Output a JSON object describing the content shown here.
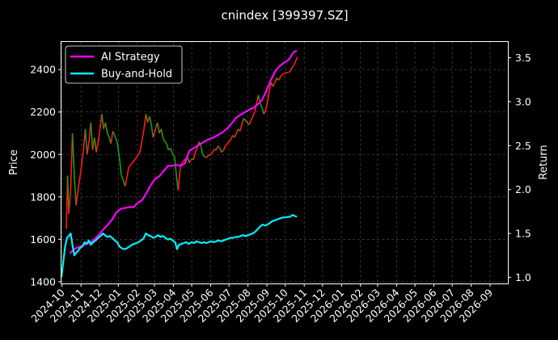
{
  "chart_data": {
    "type": "line",
    "title": "cnindex [399397.SZ]",
    "y_left": {
      "label": "Price",
      "range": [
        1392,
        2530
      ],
      "ticks": [
        1400,
        1600,
        1800,
        2000,
        2200,
        2400
      ]
    },
    "y_right": {
      "label": "Return",
      "range": [
        0.93,
        3.68
      ],
      "ticks": [
        1.0,
        1.5,
        2.0,
        2.5,
        3.0,
        3.5
      ]
    },
    "x": {
      "type": "date",
      "range": [
        "2024-09-30",
        "2026-09-30"
      ],
      "ticks": [
        "2024-10",
        "2024-11",
        "2024-12",
        "2025-01",
        "2025-02",
        "2025-03",
        "2025-04",
        "2025-05",
        "2025-06",
        "2025-07",
        "2025-08",
        "2025-09",
        "2025-10",
        "2025-11",
        "2025-12",
        "2026-01",
        "2026-02",
        "2026-03",
        "2026-04",
        "2026-05",
        "2026-06",
        "2026-07",
        "2026-08",
        "2026-09"
      ]
    },
    "grid": true,
    "legend": {
      "position": "top-left",
      "entries": [
        "AI Strategy",
        "Buy-and-Hold"
      ]
    },
    "colors": {
      "ai": "#ff00ff",
      "bh": "#00eeff",
      "up": "#ff1a1a",
      "down": "#16a016",
      "grid": "#555555",
      "axis": "#ffffff",
      "background": "#000000"
    },
    "price_series": {
      "name": "Price",
      "points": [
        [
          "2024-10-08",
          1650
        ],
        [
          "2024-10-10",
          1900
        ],
        [
          "2024-10-12",
          1720
        ],
        [
          "2024-10-15",
          1830
        ],
        [
          "2024-10-18",
          2100
        ],
        [
          "2024-10-21",
          1900
        ],
        [
          "2024-10-24",
          1760
        ],
        [
          "2024-10-27",
          1830
        ],
        [
          "2024-10-30",
          1890
        ],
        [
          "2024-11-02",
          1950
        ],
        [
          "2024-11-05",
          2020
        ],
        [
          "2024-11-08",
          2120
        ],
        [
          "2024-11-11",
          2000
        ],
        [
          "2024-11-14",
          2060
        ],
        [
          "2024-11-17",
          2150
        ],
        [
          "2024-11-20",
          2020
        ],
        [
          "2024-11-23",
          2080
        ],
        [
          "2024-11-26",
          2010
        ],
        [
          "2024-11-29",
          2060
        ],
        [
          "2024-12-02",
          2120
        ],
        [
          "2024-12-05",
          2190
        ],
        [
          "2024-12-08",
          2120
        ],
        [
          "2024-12-11",
          2150
        ],
        [
          "2024-12-14",
          2100
        ],
        [
          "2024-12-17",
          2080
        ],
        [
          "2024-12-20",
          2050
        ],
        [
          "2024-12-23",
          2110
        ],
        [
          "2024-12-26",
          2090
        ],
        [
          "2024-12-30",
          2060
        ],
        [
          "2025-01-03",
          1980
        ],
        [
          "2025-01-06",
          1900
        ],
        [
          "2025-01-09",
          1880
        ],
        [
          "2025-01-12",
          1850
        ],
        [
          "2025-01-15",
          1890
        ],
        [
          "2025-01-18",
          1940
        ],
        [
          "2025-01-21",
          1950
        ],
        [
          "2025-01-24",
          1960
        ],
        [
          "2025-02-03",
          2000
        ],
        [
          "2025-02-06",
          2020
        ],
        [
          "2025-02-09",
          2070
        ],
        [
          "2025-02-12",
          2120
        ],
        [
          "2025-02-15",
          2190
        ],
        [
          "2025-02-18",
          2150
        ],
        [
          "2025-02-21",
          2180
        ],
        [
          "2025-02-24",
          2140
        ],
        [
          "2025-02-27",
          2080
        ],
        [
          "2025-03-03",
          2120
        ],
        [
          "2025-03-06",
          2150
        ],
        [
          "2025-03-09",
          2100
        ],
        [
          "2025-03-12",
          2120
        ],
        [
          "2025-03-15",
          2080
        ],
        [
          "2025-03-18",
          2060
        ],
        [
          "2025-03-21",
          2050
        ],
        [
          "2025-03-24",
          2020
        ],
        [
          "2025-03-27",
          2030
        ],
        [
          "2025-03-31",
          2000
        ],
        [
          "2025-04-03",
          1990
        ],
        [
          "2025-04-06",
          1900
        ],
        [
          "2025-04-09",
          1830
        ],
        [
          "2025-04-12",
          1930
        ],
        [
          "2025-04-15",
          1960
        ],
        [
          "2025-04-18",
          1970
        ],
        [
          "2025-04-21",
          1980
        ],
        [
          "2025-04-24",
          1990
        ],
        [
          "2025-04-27",
          1960
        ],
        [
          "2025-05-01",
          1980
        ],
        [
          "2025-05-04",
          1975
        ],
        [
          "2025-05-07",
          2010
        ],
        [
          "2025-05-10",
          2030
        ],
        [
          "2025-05-13",
          2060
        ],
        [
          "2025-05-16",
          2040
        ],
        [
          "2025-05-19",
          2000
        ],
        [
          "2025-05-22",
          1990
        ],
        [
          "2025-05-25",
          1985
        ],
        [
          "2025-05-28",
          1995
        ],
        [
          "2025-06-01",
          2000
        ],
        [
          "2025-06-04",
          2010
        ],
        [
          "2025-06-07",
          2025
        ],
        [
          "2025-06-10",
          2020
        ],
        [
          "2025-06-13",
          2040
        ],
        [
          "2025-06-16",
          2030
        ],
        [
          "2025-06-19",
          2010
        ],
        [
          "2025-06-22",
          2020
        ],
        [
          "2025-06-25",
          2040
        ],
        [
          "2025-06-28",
          2050
        ],
        [
          "2025-07-01",
          2060
        ],
        [
          "2025-07-04",
          2070
        ],
        [
          "2025-07-07",
          2090
        ],
        [
          "2025-07-10",
          2080
        ],
        [
          "2025-07-13",
          2100
        ],
        [
          "2025-07-16",
          2120
        ],
        [
          "2025-07-19",
          2110
        ],
        [
          "2025-07-22",
          2140
        ],
        [
          "2025-07-25",
          2170
        ],
        [
          "2025-07-28",
          2160
        ],
        [
          "2025-07-31",
          2150
        ],
        [
          "2025-08-03",
          2140
        ],
        [
          "2025-08-06",
          2160
        ],
        [
          "2025-08-09",
          2180
        ],
        [
          "2025-08-12",
          2200
        ],
        [
          "2025-08-15",
          2240
        ],
        [
          "2025-08-18",
          2280
        ],
        [
          "2025-08-21",
          2240
        ],
        [
          "2025-08-24",
          2220
        ],
        [
          "2025-08-27",
          2190
        ],
        [
          "2025-08-30",
          2210
        ],
        [
          "2025-09-02",
          2250
        ],
        [
          "2025-09-05",
          2300
        ],
        [
          "2025-09-08",
          2340
        ],
        [
          "2025-09-11",
          2320
        ],
        [
          "2025-09-14",
          2340
        ],
        [
          "2025-09-17",
          2360
        ],
        [
          "2025-09-20",
          2350
        ],
        [
          "2025-09-24",
          2370
        ],
        [
          "2025-09-28",
          2380
        ],
        [
          "2025-10-09",
          2390
        ],
        [
          "2025-10-12",
          2410
        ],
        [
          "2025-10-15",
          2420
        ],
        [
          "2025-10-18",
          2440
        ],
        [
          "2025-10-21",
          2460
        ]
      ]
    },
    "series": [
      {
        "name": "AI Strategy",
        "axis": "right",
        "points": [
          [
            "2024-10-14",
            1.27
          ],
          [
            "2024-10-20",
            1.32
          ],
          [
            "2024-10-27",
            1.34
          ],
          [
            "2024-11-03",
            1.36
          ],
          [
            "2024-11-10",
            1.38
          ],
          [
            "2024-11-17",
            1.4
          ],
          [
            "2024-11-24",
            1.44
          ],
          [
            "2024-12-01",
            1.49
          ],
          [
            "2024-12-08",
            1.55
          ],
          [
            "2024-12-15",
            1.6
          ],
          [
            "2024-12-22",
            1.66
          ],
          [
            "2024-12-29",
            1.74
          ],
          [
            "2025-01-05",
            1.78
          ],
          [
            "2025-01-12",
            1.79
          ],
          [
            "2025-01-19",
            1.8
          ],
          [
            "2025-01-26",
            1.8
          ],
          [
            "2025-02-02",
            1.85
          ],
          [
            "2025-02-09",
            1.88
          ],
          [
            "2025-02-16",
            1.96
          ],
          [
            "2025-02-23",
            2.05
          ],
          [
            "2025-03-02",
            2.12
          ],
          [
            "2025-03-09",
            2.15
          ],
          [
            "2025-03-16",
            2.21
          ],
          [
            "2025-03-23",
            2.27
          ],
          [
            "2025-03-30",
            2.27
          ],
          [
            "2025-04-06",
            2.28
          ],
          [
            "2025-04-13",
            2.27
          ],
          [
            "2025-04-20",
            2.3
          ],
          [
            "2025-04-27",
            2.44
          ],
          [
            "2025-05-04",
            2.47
          ],
          [
            "2025-05-11",
            2.5
          ],
          [
            "2025-05-18",
            2.53
          ],
          [
            "2025-05-25",
            2.56
          ],
          [
            "2025-06-01",
            2.58
          ],
          [
            "2025-06-08",
            2.6
          ],
          [
            "2025-06-15",
            2.63
          ],
          [
            "2025-06-22",
            2.66
          ],
          [
            "2025-06-29",
            2.7
          ],
          [
            "2025-07-06",
            2.76
          ],
          [
            "2025-07-13",
            2.82
          ],
          [
            "2025-07-20",
            2.85
          ],
          [
            "2025-07-27",
            2.88
          ],
          [
            "2025-08-03",
            2.91
          ],
          [
            "2025-08-10",
            2.93
          ],
          [
            "2025-08-17",
            2.97
          ],
          [
            "2025-08-24",
            3.02
          ],
          [
            "2025-08-31",
            3.12
          ],
          [
            "2025-09-07",
            3.24
          ],
          [
            "2025-09-14",
            3.34
          ],
          [
            "2025-09-21",
            3.4
          ],
          [
            "2025-09-28",
            3.44
          ],
          [
            "2025-10-05",
            3.47
          ],
          [
            "2025-10-09",
            3.5
          ],
          [
            "2025-10-13",
            3.55
          ],
          [
            "2025-10-16",
            3.57
          ],
          [
            "2025-10-20",
            3.58
          ]
        ]
      },
      {
        "name": "Buy-and-Hold",
        "axis": "right",
        "points": [
          [
            "2024-09-30",
            1.0
          ],
          [
            "2024-10-03",
            1.18
          ],
          [
            "2024-10-06",
            1.35
          ],
          [
            "2024-10-09",
            1.45
          ],
          [
            "2024-10-12",
            1.47
          ],
          [
            "2024-10-15",
            1.5
          ],
          [
            "2024-10-18",
            1.37
          ],
          [
            "2024-10-21",
            1.25
          ],
          [
            "2024-10-24",
            1.28
          ],
          [
            "2024-10-27",
            1.3
          ],
          [
            "2024-10-30",
            1.33
          ],
          [
            "2024-11-03",
            1.35
          ],
          [
            "2024-11-07",
            1.4
          ],
          [
            "2024-11-10",
            1.38
          ],
          [
            "2024-11-14",
            1.42
          ],
          [
            "2024-11-17",
            1.37
          ],
          [
            "2024-11-21",
            1.4
          ],
          [
            "2024-11-25",
            1.42
          ],
          [
            "2024-11-29",
            1.45
          ],
          [
            "2024-12-03",
            1.47
          ],
          [
            "2024-12-07",
            1.5
          ],
          [
            "2024-12-10",
            1.48
          ],
          [
            "2024-12-14",
            1.46
          ],
          [
            "2024-12-18",
            1.47
          ],
          [
            "2024-12-22",
            1.45
          ],
          [
            "2024-12-26",
            1.42
          ],
          [
            "2024-12-30",
            1.4
          ],
          [
            "2025-01-03",
            1.35
          ],
          [
            "2025-01-07",
            1.33
          ],
          [
            "2025-01-11",
            1.32
          ],
          [
            "2025-01-15",
            1.33
          ],
          [
            "2025-01-19",
            1.35
          ],
          [
            "2025-01-23",
            1.37
          ],
          [
            "2025-01-27",
            1.38
          ],
          [
            "2025-02-03",
            1.4
          ],
          [
            "2025-02-07",
            1.42
          ],
          [
            "2025-02-11",
            1.44
          ],
          [
            "2025-02-15",
            1.5
          ],
          [
            "2025-02-19",
            1.48
          ],
          [
            "2025-02-23",
            1.47
          ],
          [
            "2025-02-27",
            1.45
          ],
          [
            "2025-03-03",
            1.46
          ],
          [
            "2025-03-07",
            1.48
          ],
          [
            "2025-03-11",
            1.46
          ],
          [
            "2025-03-15",
            1.47
          ],
          [
            "2025-03-19",
            1.45
          ],
          [
            "2025-03-23",
            1.43
          ],
          [
            "2025-03-27",
            1.44
          ],
          [
            "2025-03-31",
            1.42
          ],
          [
            "2025-04-04",
            1.4
          ],
          [
            "2025-04-07",
            1.32
          ],
          [
            "2025-04-10",
            1.37
          ],
          [
            "2025-04-14",
            1.38
          ],
          [
            "2025-04-18",
            1.39
          ],
          [
            "2025-04-22",
            1.4
          ],
          [
            "2025-04-26",
            1.38
          ],
          [
            "2025-05-01",
            1.4
          ],
          [
            "2025-05-05",
            1.39
          ],
          [
            "2025-05-09",
            1.41
          ],
          [
            "2025-05-13",
            1.4
          ],
          [
            "2025-05-17",
            1.39
          ],
          [
            "2025-05-21",
            1.4
          ],
          [
            "2025-05-25",
            1.39
          ],
          [
            "2025-05-29",
            1.4
          ],
          [
            "2025-06-02",
            1.41
          ],
          [
            "2025-06-06",
            1.4
          ],
          [
            "2025-06-10",
            1.41
          ],
          [
            "2025-06-14",
            1.42
          ],
          [
            "2025-06-18",
            1.41
          ],
          [
            "2025-06-22",
            1.42
          ],
          [
            "2025-06-26",
            1.43
          ],
          [
            "2025-06-30",
            1.44
          ],
          [
            "2025-07-04",
            1.45
          ],
          [
            "2025-07-08",
            1.45
          ],
          [
            "2025-07-12",
            1.46
          ],
          [
            "2025-07-16",
            1.46
          ],
          [
            "2025-07-20",
            1.47
          ],
          [
            "2025-07-24",
            1.48
          ],
          [
            "2025-07-28",
            1.47
          ],
          [
            "2025-08-01",
            1.48
          ],
          [
            "2025-08-05",
            1.49
          ],
          [
            "2025-08-09",
            1.5
          ],
          [
            "2025-08-13",
            1.52
          ],
          [
            "2025-08-17",
            1.55
          ],
          [
            "2025-08-21",
            1.58
          ],
          [
            "2025-08-25",
            1.6
          ],
          [
            "2025-08-29",
            1.59
          ],
          [
            "2025-09-02",
            1.6
          ],
          [
            "2025-09-06",
            1.62
          ],
          [
            "2025-09-10",
            1.64
          ],
          [
            "2025-09-14",
            1.65
          ],
          [
            "2025-09-18",
            1.66
          ],
          [
            "2025-09-22",
            1.67
          ],
          [
            "2025-09-26",
            1.68
          ],
          [
            "2025-10-09",
            1.69
          ],
          [
            "2025-10-13",
            1.71
          ],
          [
            "2025-10-16",
            1.7
          ],
          [
            "2025-10-20",
            1.69
          ]
        ]
      }
    ]
  }
}
